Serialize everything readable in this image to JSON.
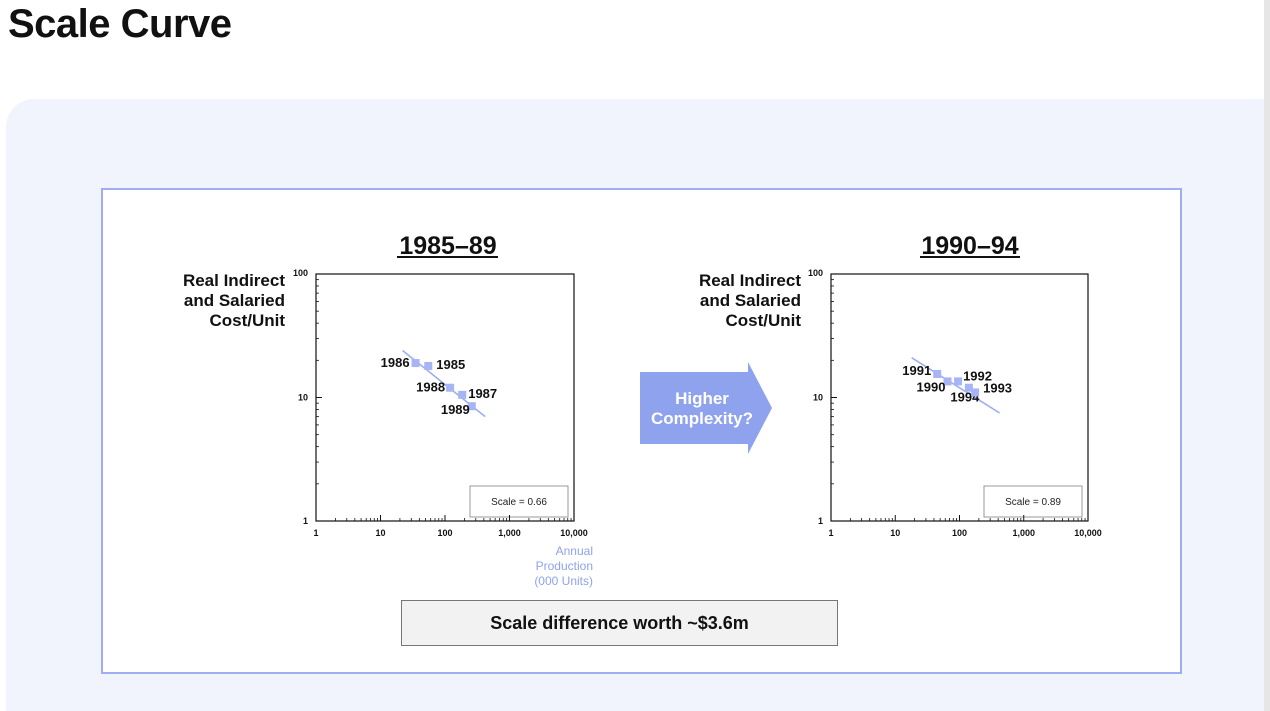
{
  "page": {
    "title": "Scale Curve"
  },
  "colors": {
    "accent": "#9eaef0",
    "marker": "#a7b5f4",
    "panel_bg": "#f1f4fc",
    "arrow": "#8fa2ee"
  },
  "y_axis_label": [
    "Real Indirect",
    "and Salaried",
    "Cost/Unit"
  ],
  "x_axis_title": [
    "Annual",
    "Production",
    "(000 Units)"
  ],
  "arrow": {
    "lines": [
      "Higher",
      "Complexity?"
    ]
  },
  "summary": {
    "text": "Scale difference worth ~$3.6m"
  },
  "chart_data": [
    {
      "type": "scatter",
      "title": "1985–89",
      "x_scale": "log",
      "y_scale": "log",
      "xlim": [
        1,
        10000
      ],
      "ylim": [
        1,
        100
      ],
      "x_ticks": [
        "1",
        "10",
        "100",
        "1,000",
        "10,000"
      ],
      "y_ticks": [
        "1",
        "10",
        "100"
      ],
      "points": [
        {
          "label": "1986",
          "x": 35,
          "y": 19
        },
        {
          "label": "1985",
          "x": 55,
          "y": 18
        },
        {
          "label": "1988",
          "x": 120,
          "y": 12
        },
        {
          "label": "1987",
          "x": 185,
          "y": 10.5
        },
        {
          "label": "1989",
          "x": 260,
          "y": 8.5
        }
      ],
      "trend": {
        "x": [
          22,
          420
        ],
        "y": [
          24,
          7
        ]
      },
      "annotation": "Scale = 0.66"
    },
    {
      "type": "scatter",
      "title": "1990–94",
      "x_scale": "log",
      "y_scale": "log",
      "xlim": [
        1,
        10000
      ],
      "ylim": [
        1,
        100
      ],
      "x_ticks": [
        "1",
        "10",
        "100",
        "1,000",
        "10,000"
      ],
      "y_ticks": [
        "1",
        "10",
        "100"
      ],
      "points": [
        {
          "label": "1991",
          "x": 45,
          "y": 15.5
        },
        {
          "label": "1990",
          "x": 65,
          "y": 13.5
        },
        {
          "label": "1992",
          "x": 95,
          "y": 13.5
        },
        {
          "label": "1994",
          "x": 140,
          "y": 12
        },
        {
          "label": "1993",
          "x": 175,
          "y": 11
        }
      ],
      "trend": {
        "x": [
          18,
          420
        ],
        "y": [
          21,
          7.5
        ]
      },
      "annotation": "Scale = 0.89"
    }
  ]
}
